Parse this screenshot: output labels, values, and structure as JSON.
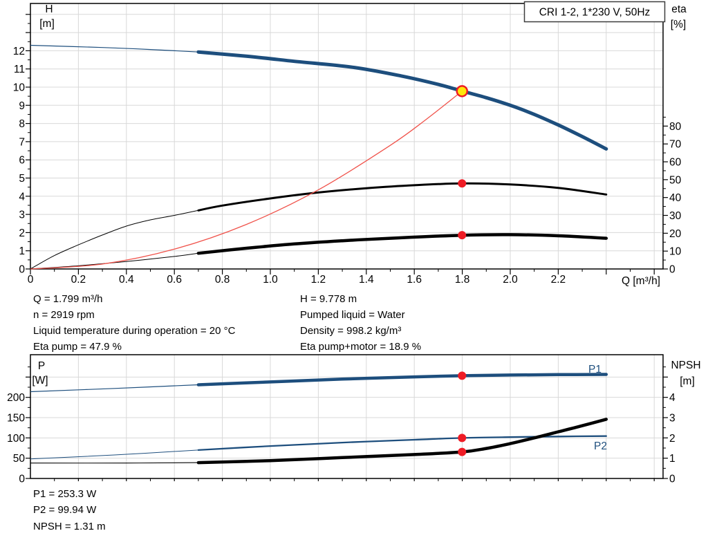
{
  "legend": "CRI 1-2, 1*230 V, 50Hz",
  "colors": {
    "curve_blue": "#1d4e7d",
    "curve_black": "#000000",
    "system_red": "#f0524a",
    "marker_red": "#ee1c25",
    "marker_yellow": "#ffe60a",
    "grid": "#d8d8d8",
    "frame": "#000000"
  },
  "info_top": {
    "left": [
      "Q = 1.799 m³/h",
      "n = 2919 rpm",
      "Liquid temperature during operation = 20 °C",
      "Eta pump = 47.9 %"
    ],
    "right": [
      "H = 9.778 m",
      "Pumped liquid = Water",
      "Density = 998.2 kg/m³",
      "Eta pump+motor = 18.9 %"
    ]
  },
  "info_bottom": [
    "P1 = 253.3 W",
    "P2 = 99.94 W",
    "NPSH = 1.31 m"
  ],
  "chart_data": [
    {
      "type": "line",
      "title": "CRI 1-2, 1*230 V, 50Hz",
      "x_label": "Q [m³/h]",
      "x_range": [
        0,
        2.64
      ],
      "left_axis": {
        "label_lines": [
          "H",
          "[m]"
        ],
        "range": [
          0,
          14.6
        ],
        "ticks": [
          [
            0,
            "0"
          ],
          [
            1,
            "1"
          ],
          [
            2,
            "2"
          ],
          [
            3,
            "3"
          ],
          [
            4,
            "4"
          ],
          [
            5,
            "5"
          ],
          [
            6,
            "6"
          ],
          [
            7,
            "7"
          ],
          [
            8,
            "8"
          ],
          [
            9,
            "9"
          ],
          [
            10,
            "10"
          ],
          [
            11,
            "11"
          ],
          [
            12,
            "12"
          ]
        ]
      },
      "right_axis": {
        "label_lines": [
          "eta",
          "[%]"
        ],
        "range": [
          0,
          148
        ],
        "ticks": [
          [
            0,
            "0"
          ],
          [
            10,
            "10"
          ],
          [
            20,
            "20"
          ],
          [
            30,
            "30"
          ],
          [
            40,
            "40"
          ],
          [
            50,
            "50"
          ],
          [
            60,
            "60"
          ],
          [
            70,
            "70"
          ],
          [
            80,
            "80"
          ]
        ]
      },
      "x_axis": {
        "ticks": [
          [
            0,
            "0"
          ],
          [
            0.2,
            "0.2"
          ],
          [
            0.4,
            "0.4"
          ],
          [
            0.6,
            "0.6"
          ],
          [
            0.8,
            "0.8"
          ],
          [
            1.0,
            "1.0"
          ],
          [
            1.2,
            "1.2"
          ],
          [
            1.4,
            "1.4"
          ],
          [
            1.6,
            "1.6"
          ],
          [
            1.8,
            "1.8"
          ],
          [
            2.0,
            "2.0"
          ],
          [
            2.2,
            "2.2"
          ]
        ]
      },
      "series": [
        {
          "name": "eta-pump-curve",
          "axis": "right",
          "color_key": "curve_black",
          "w_thin": 1,
          "w_thick": 3,
          "thick_from": 0.7,
          "points": [
            [
              0,
              0
            ],
            [
              0.1,
              7.5
            ],
            [
              0.2,
              13.5
            ],
            [
              0.3,
              19
            ],
            [
              0.4,
              24
            ],
            [
              0.5,
              27.5
            ],
            [
              0.6,
              30
            ],
            [
              0.7,
              32.8
            ],
            [
              0.8,
              35.5
            ],
            [
              1.0,
              39.5
            ],
            [
              1.2,
              42.8
            ],
            [
              1.4,
              45.2
            ],
            [
              1.6,
              46.9
            ],
            [
              1.8,
              47.9
            ],
            [
              2.0,
              47.3
            ],
            [
              2.2,
              45.4
            ],
            [
              2.4,
              41.7
            ]
          ]
        },
        {
          "name": "eta-pump-motor-curve",
          "axis": "right",
          "color_key": "curve_black",
          "w_thin": 1,
          "w_thick": 4.5,
          "thick_from": 0.7,
          "points": [
            [
              0,
              0
            ],
            [
              0.2,
              1.8
            ],
            [
              0.4,
              4.2
            ],
            [
              0.6,
              7
            ],
            [
              0.7,
              8.8
            ],
            [
              0.9,
              11.6
            ],
            [
              1.1,
              14
            ],
            [
              1.3,
              15.8
            ],
            [
              1.5,
              17.2
            ],
            [
              1.8,
              18.9
            ],
            [
              2.0,
              19.2
            ],
            [
              2.2,
              18.6
            ],
            [
              2.4,
              17.2
            ]
          ]
        },
        {
          "name": "system-curve",
          "axis": "left",
          "color_key": "system_red",
          "w_thin": 1.3,
          "points": [
            [
              0,
              0
            ],
            [
              0.3,
              0.27
            ],
            [
              0.6,
              1.09
            ],
            [
              0.9,
              2.45
            ],
            [
              1.2,
              4.35
            ],
            [
              1.5,
              6.8
            ],
            [
              1.65,
              8.23
            ],
            [
              1.799,
              9.778
            ]
          ]
        },
        {
          "name": "qh-curve",
          "axis": "left",
          "color_key": "curve_blue",
          "w_thin": 1.2,
          "w_thick": 5,
          "thick_from": 0.7,
          "points": [
            [
              0,
              12.3
            ],
            [
              0.3,
              12.18
            ],
            [
              0.5,
              12.07
            ],
            [
              0.7,
              11.93
            ],
            [
              0.9,
              11.7
            ],
            [
              1.1,
              11.42
            ],
            [
              1.35,
              11.08
            ],
            [
              1.55,
              10.6
            ],
            [
              1.7,
              10.15
            ],
            [
              1.8,
              9.778
            ],
            [
              1.9,
              9.42
            ],
            [
              2.0,
              9.0
            ],
            [
              2.1,
              8.5
            ],
            [
              2.2,
              7.92
            ],
            [
              2.3,
              7.28
            ],
            [
              2.4,
              6.6
            ]
          ]
        }
      ],
      "markers": [
        {
          "kind": "dot",
          "q": 1.799,
          "v": 47.9,
          "axis": "right"
        },
        {
          "kind": "dot",
          "q": 1.799,
          "v": 18.9,
          "axis": "right"
        },
        {
          "kind": "duty",
          "q": 1.799,
          "v": 9.778,
          "axis": "left"
        }
      ]
    },
    {
      "type": "line",
      "title": "",
      "x_label": "",
      "x_range": [
        0,
        2.64
      ],
      "left_axis": {
        "label_lines": [
          "P",
          "[W]"
        ],
        "range": [
          0,
          305
        ],
        "ticks": [
          [
            0,
            "0"
          ],
          [
            50,
            "50"
          ],
          [
            100,
            "100"
          ],
          [
            150,
            "150"
          ],
          [
            200,
            "200"
          ]
        ]
      },
      "right_axis": {
        "label_lines": [
          "NPSH",
          "[m]"
        ],
        "range": [
          0,
          6.1
        ],
        "ticks": [
          [
            0,
            "0"
          ],
          [
            1,
            "1"
          ],
          [
            2,
            "2"
          ],
          [
            3,
            "3"
          ],
          [
            4,
            "4"
          ]
        ]
      },
      "x_axis": {
        "ticks": []
      },
      "curve_labels": [
        {
          "text": "P1"
        },
        {
          "text": "P2"
        }
      ],
      "series": [
        {
          "name": "p2-curve",
          "axis": "left",
          "color_key": "curve_blue",
          "w_thin": 1,
          "w_thick": 2.3,
          "thick_from": 0.7,
          "points": [
            [
              0,
              48
            ],
            [
              0.35,
              58
            ],
            [
              0.7,
              70
            ],
            [
              1.0,
              80
            ],
            [
              1.3,
              88.5
            ],
            [
              1.6,
              95.5
            ],
            [
              1.8,
              99.94
            ],
            [
              2.0,
              102
            ],
            [
              2.2,
              103.5
            ],
            [
              2.4,
              104.5
            ]
          ]
        },
        {
          "name": "p1-curve",
          "axis": "left",
          "color_key": "curve_blue",
          "w_thin": 1.2,
          "w_thick": 4.5,
          "thick_from": 0.7,
          "points": [
            [
              0,
              214
            ],
            [
              0.35,
              222
            ],
            [
              0.7,
              231
            ],
            [
              1.0,
              238
            ],
            [
              1.3,
              245
            ],
            [
              1.6,
              250.5
            ],
            [
              1.8,
              253.3
            ],
            [
              2.0,
              255
            ],
            [
              2.2,
              256
            ],
            [
              2.4,
              256.5
            ]
          ]
        },
        {
          "name": "npsh-curve",
          "axis": "right",
          "color_key": "curve_black",
          "w_thin": 1.1,
          "w_thick": 4.5,
          "thick_from": 0.7,
          "points": [
            [
              0,
              0.76
            ],
            [
              0.4,
              0.76
            ],
            [
              0.7,
              0.78
            ],
            [
              1.0,
              0.88
            ],
            [
              1.3,
              1.03
            ],
            [
              1.6,
              1.18
            ],
            [
              1.8,
              1.31
            ],
            [
              1.9,
              1.48
            ],
            [
              2.0,
              1.72
            ],
            [
              2.1,
              2.0
            ],
            [
              2.2,
              2.3
            ],
            [
              2.3,
              2.6
            ],
            [
              2.4,
              2.92
            ]
          ]
        }
      ],
      "markers": [
        {
          "kind": "dot",
          "q": 1.799,
          "v": 253.3,
          "axis": "left"
        },
        {
          "kind": "dot",
          "v": 99.94,
          "q": 1.799,
          "axis": "left"
        },
        {
          "kind": "dot",
          "q": 1.799,
          "v": 1.31,
          "axis": "right"
        }
      ]
    }
  ]
}
